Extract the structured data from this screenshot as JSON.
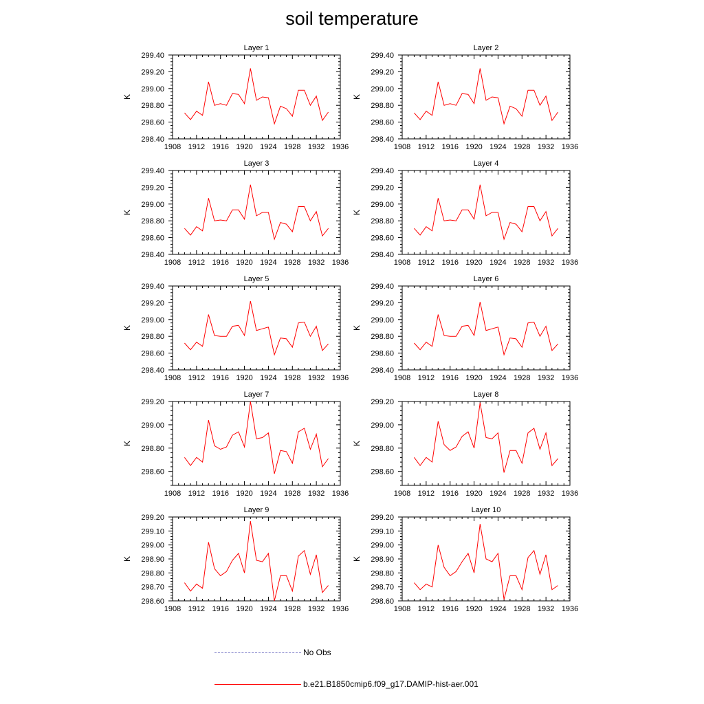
{
  "title": "soil temperature",
  "colors": {
    "model": "#ff0000",
    "obs": "#7b7bc8"
  },
  "legend": [
    {
      "label": "No Obs",
      "style": "dashed",
      "color": "#7b7bc8"
    },
    {
      "label": "b.e21.B1850cmip6.f09_g17.DAMIP-hist-aer.001",
      "style": "solid",
      "color": "#ff0000"
    }
  ],
  "chart_data": [
    {
      "type": "line",
      "title": "Layer 1",
      "ylabel": "K",
      "xlim": [
        1908,
        1936
      ],
      "ylim": [
        298.4,
        299.4
      ],
      "xticks": [
        "1908",
        "1912",
        "1916",
        "1920",
        "1924",
        "1928",
        "1932",
        "1936"
      ],
      "yticks": [
        "298.40",
        "298.60",
        "298.80",
        "299.00",
        "299.20",
        "299.40"
      ],
      "x": [
        1910,
        1911,
        1912,
        1913,
        1914,
        1915,
        1916,
        1917,
        1918,
        1919,
        1920,
        1921,
        1922,
        1923,
        1924,
        1925,
        1926,
        1927,
        1928,
        1929,
        1930,
        1931,
        1932,
        1933,
        1934
      ],
      "series": [
        {
          "values": [
            298.71,
            298.63,
            298.73,
            298.68,
            299.08,
            298.8,
            298.82,
            298.8,
            298.94,
            298.93,
            298.82,
            299.24,
            298.86,
            298.9,
            298.89,
            298.58,
            298.79,
            298.76,
            298.67,
            298.98,
            298.98,
            298.8,
            298.91,
            298.62,
            298.72
          ]
        }
      ]
    },
    {
      "type": "line",
      "title": "Layer 2",
      "ylabel": "K",
      "xlim": [
        1908,
        1936
      ],
      "ylim": [
        298.4,
        299.4
      ],
      "xticks": [
        "1908",
        "1912",
        "1916",
        "1920",
        "1924",
        "1928",
        "1932",
        "1936"
      ],
      "yticks": [
        "298.40",
        "298.60",
        "298.80",
        "299.00",
        "299.20",
        "299.40"
      ],
      "x": [
        1910,
        1911,
        1912,
        1913,
        1914,
        1915,
        1916,
        1917,
        1918,
        1919,
        1920,
        1921,
        1922,
        1923,
        1924,
        1925,
        1926,
        1927,
        1928,
        1929,
        1930,
        1931,
        1932,
        1933,
        1934
      ],
      "series": [
        {
          "values": [
            298.71,
            298.63,
            298.73,
            298.68,
            299.08,
            298.8,
            298.82,
            298.8,
            298.94,
            298.93,
            298.82,
            299.24,
            298.86,
            298.9,
            298.89,
            298.58,
            298.79,
            298.76,
            298.67,
            298.98,
            298.98,
            298.8,
            298.91,
            298.62,
            298.72
          ]
        }
      ]
    },
    {
      "type": "line",
      "title": "Layer 3",
      "ylabel": "K",
      "xlim": [
        1908,
        1936
      ],
      "ylim": [
        298.4,
        299.4
      ],
      "xticks": [
        "1908",
        "1912",
        "1916",
        "1920",
        "1924",
        "1928",
        "1932",
        "1936"
      ],
      "yticks": [
        "298.40",
        "298.60",
        "298.80",
        "299.00",
        "299.20",
        "299.40"
      ],
      "x": [
        1910,
        1911,
        1912,
        1913,
        1914,
        1915,
        1916,
        1917,
        1918,
        1919,
        1920,
        1921,
        1922,
        1923,
        1924,
        1925,
        1926,
        1927,
        1928,
        1929,
        1930,
        1931,
        1932,
        1933,
        1934
      ],
      "series": [
        {
          "values": [
            298.71,
            298.63,
            298.73,
            298.68,
            299.07,
            298.8,
            298.81,
            298.8,
            298.93,
            298.93,
            298.82,
            299.23,
            298.86,
            298.9,
            298.9,
            298.58,
            298.78,
            298.76,
            298.67,
            298.97,
            298.97,
            298.8,
            298.91,
            298.62,
            298.71
          ]
        }
      ]
    },
    {
      "type": "line",
      "title": "Layer 4",
      "ylabel": "K",
      "xlim": [
        1908,
        1936
      ],
      "ylim": [
        298.4,
        299.4
      ],
      "xticks": [
        "1908",
        "1912",
        "1916",
        "1920",
        "1924",
        "1928",
        "1932",
        "1936"
      ],
      "yticks": [
        "298.40",
        "298.60",
        "298.80",
        "299.00",
        "299.20",
        "299.40"
      ],
      "x": [
        1910,
        1911,
        1912,
        1913,
        1914,
        1915,
        1916,
        1917,
        1918,
        1919,
        1920,
        1921,
        1922,
        1923,
        1924,
        1925,
        1926,
        1927,
        1928,
        1929,
        1930,
        1931,
        1932,
        1933,
        1934
      ],
      "series": [
        {
          "values": [
            298.71,
            298.63,
            298.73,
            298.68,
            299.07,
            298.8,
            298.81,
            298.8,
            298.93,
            298.93,
            298.82,
            299.23,
            298.86,
            298.9,
            298.9,
            298.58,
            298.78,
            298.76,
            298.67,
            298.97,
            298.97,
            298.8,
            298.91,
            298.62,
            298.71
          ]
        }
      ]
    },
    {
      "type": "line",
      "title": "Layer 5",
      "ylabel": "K",
      "xlim": [
        1908,
        1936
      ],
      "ylim": [
        298.4,
        299.4
      ],
      "xticks": [
        "1908",
        "1912",
        "1916",
        "1920",
        "1924",
        "1928",
        "1932",
        "1936"
      ],
      "yticks": [
        "298.40",
        "298.60",
        "298.80",
        "299.00",
        "299.20",
        "299.40"
      ],
      "x": [
        1910,
        1911,
        1912,
        1913,
        1914,
        1915,
        1916,
        1917,
        1918,
        1919,
        1920,
        1921,
        1922,
        1923,
        1924,
        1925,
        1926,
        1927,
        1928,
        1929,
        1930,
        1931,
        1932,
        1933,
        1934
      ],
      "series": [
        {
          "values": [
            298.72,
            298.64,
            298.73,
            298.68,
            299.06,
            298.81,
            298.8,
            298.8,
            298.92,
            298.93,
            298.81,
            299.22,
            298.87,
            298.89,
            298.91,
            298.58,
            298.78,
            298.77,
            298.67,
            298.96,
            298.97,
            298.8,
            298.92,
            298.63,
            298.71
          ]
        }
      ]
    },
    {
      "type": "line",
      "title": "Layer 6",
      "ylabel": "K",
      "xlim": [
        1908,
        1936
      ],
      "ylim": [
        298.4,
        299.4
      ],
      "xticks": [
        "1908",
        "1912",
        "1916",
        "1920",
        "1924",
        "1928",
        "1932",
        "1936"
      ],
      "yticks": [
        "298.40",
        "298.60",
        "298.80",
        "299.00",
        "299.20",
        "299.40"
      ],
      "x": [
        1910,
        1911,
        1912,
        1913,
        1914,
        1915,
        1916,
        1917,
        1918,
        1919,
        1920,
        1921,
        1922,
        1923,
        1924,
        1925,
        1926,
        1927,
        1928,
        1929,
        1930,
        1931,
        1932,
        1933,
        1934
      ],
      "series": [
        {
          "values": [
            298.72,
            298.64,
            298.73,
            298.68,
            299.06,
            298.81,
            298.8,
            298.8,
            298.92,
            298.93,
            298.81,
            299.21,
            298.87,
            298.89,
            298.91,
            298.58,
            298.78,
            298.77,
            298.67,
            298.96,
            298.97,
            298.8,
            298.92,
            298.63,
            298.71
          ]
        }
      ]
    },
    {
      "type": "line",
      "title": "Layer 7",
      "ylabel": "K",
      "xlim": [
        1908,
        1936
      ],
      "ylim": [
        298.48,
        299.2
      ],
      "xticks": [
        "1908",
        "1912",
        "1916",
        "1920",
        "1924",
        "1928",
        "1932",
        "1936"
      ],
      "yticks": [
        "298.60",
        "298.80",
        "299.00",
        "299.20"
      ],
      "x": [
        1910,
        1911,
        1912,
        1913,
        1914,
        1915,
        1916,
        1917,
        1918,
        1919,
        1920,
        1921,
        1922,
        1923,
        1924,
        1925,
        1926,
        1927,
        1928,
        1929,
        1930,
        1931,
        1932,
        1933,
        1934
      ],
      "series": [
        {
          "values": [
            298.72,
            298.65,
            298.72,
            298.68,
            299.04,
            298.82,
            298.79,
            298.81,
            298.91,
            298.94,
            298.81,
            299.2,
            298.88,
            298.89,
            298.93,
            298.58,
            298.78,
            298.77,
            298.67,
            298.94,
            298.97,
            298.79,
            298.92,
            298.64,
            298.71
          ]
        }
      ]
    },
    {
      "type": "line",
      "title": "Layer 8",
      "ylabel": "K",
      "xlim": [
        1908,
        1936
      ],
      "ylim": [
        298.48,
        299.2
      ],
      "xticks": [
        "1908",
        "1912",
        "1916",
        "1920",
        "1924",
        "1928",
        "1932",
        "1936"
      ],
      "yticks": [
        "298.60",
        "298.80",
        "299.00",
        "299.20"
      ],
      "x": [
        1910,
        1911,
        1912,
        1913,
        1914,
        1915,
        1916,
        1917,
        1918,
        1919,
        1920,
        1921,
        1922,
        1923,
        1924,
        1925,
        1926,
        1927,
        1928,
        1929,
        1930,
        1931,
        1932,
        1933,
        1934
      ],
      "series": [
        {
          "values": [
            298.72,
            298.65,
            298.72,
            298.68,
            299.03,
            298.83,
            298.78,
            298.81,
            298.9,
            298.94,
            298.8,
            299.19,
            298.89,
            298.88,
            298.93,
            298.59,
            298.78,
            298.78,
            298.67,
            298.93,
            298.97,
            298.79,
            298.93,
            298.65,
            298.71
          ]
        }
      ]
    },
    {
      "type": "line",
      "title": "Layer 9",
      "ylabel": "K",
      "xlim": [
        1908,
        1936
      ],
      "ylim": [
        298.6,
        299.2
      ],
      "xticks": [
        "1908",
        "1912",
        "1916",
        "1920",
        "1924",
        "1928",
        "1932",
        "1936"
      ],
      "yticks": [
        "298.60",
        "298.70",
        "298.80",
        "298.90",
        "299.00",
        "299.10",
        "299.20"
      ],
      "x": [
        1910,
        1911,
        1912,
        1913,
        1914,
        1915,
        1916,
        1917,
        1918,
        1919,
        1920,
        1921,
        1922,
        1923,
        1924,
        1925,
        1926,
        1927,
        1928,
        1929,
        1930,
        1931,
        1932,
        1933,
        1934
      ],
      "series": [
        {
          "values": [
            298.73,
            298.67,
            298.72,
            298.69,
            299.02,
            298.83,
            298.78,
            298.81,
            298.89,
            298.94,
            298.8,
            299.17,
            298.89,
            298.88,
            298.94,
            298.6,
            298.78,
            298.78,
            298.67,
            298.92,
            298.96,
            298.79,
            298.93,
            298.66,
            298.71
          ]
        }
      ]
    },
    {
      "type": "line",
      "title": "Layer 10",
      "ylabel": "K",
      "xlim": [
        1908,
        1936
      ],
      "ylim": [
        298.6,
        299.2
      ],
      "xticks": [
        "1908",
        "1912",
        "1916",
        "1920",
        "1924",
        "1928",
        "1932",
        "1936"
      ],
      "yticks": [
        "298.60",
        "298.70",
        "298.80",
        "298.90",
        "299.00",
        "299.10",
        "299.20"
      ],
      "x": [
        1910,
        1911,
        1912,
        1913,
        1914,
        1915,
        1916,
        1917,
        1918,
        1919,
        1920,
        1921,
        1922,
        1923,
        1924,
        1925,
        1926,
        1927,
        1928,
        1929,
        1930,
        1931,
        1932,
        1933,
        1934
      ],
      "series": [
        {
          "values": [
            298.73,
            298.68,
            298.72,
            298.7,
            299.0,
            298.84,
            298.78,
            298.81,
            298.88,
            298.94,
            298.8,
            299.15,
            298.9,
            298.88,
            298.94,
            298.61,
            298.78,
            298.78,
            298.68,
            298.91,
            298.96,
            298.79,
            298.93,
            298.68,
            298.71
          ]
        }
      ]
    }
  ]
}
